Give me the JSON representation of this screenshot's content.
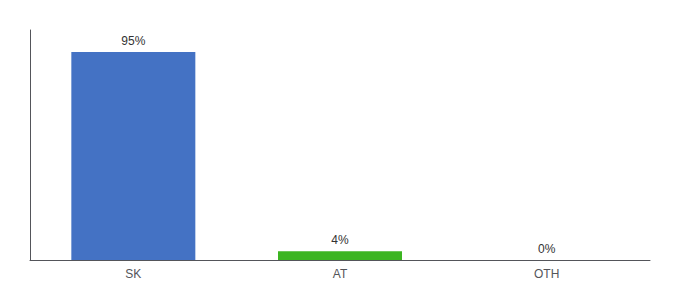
{
  "chart_data": {
    "type": "bar",
    "categories": [
      "SK",
      "AT",
      "OTH"
    ],
    "values": [
      95,
      4,
      0
    ],
    "value_labels": [
      "95%",
      "4%",
      "0%"
    ],
    "colors": [
      "#4472c4",
      "#3cb521",
      "#4472c4"
    ],
    "ylim": [
      0,
      105
    ],
    "data_labels": true,
    "tick_labels": "x",
    "grid": false
  }
}
